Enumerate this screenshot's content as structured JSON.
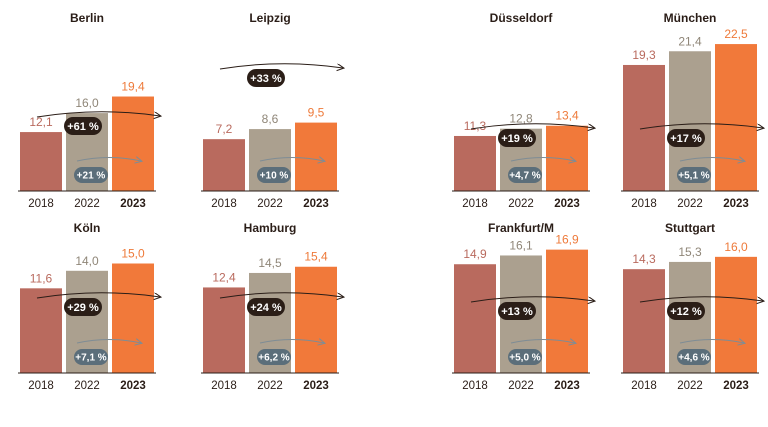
{
  "chart_data": [
    {
      "type": "bar",
      "title": "Berlin",
      "categories": [
        "2018",
        "2022",
        "2023"
      ],
      "values": [
        12.1,
        16.0,
        19.4
      ],
      "value_labels": [
        "12,1",
        "16,0",
        "19,4"
      ],
      "change_2018_2023": "+61 %",
      "change_2022_2023": "+21 %"
    },
    {
      "type": "bar",
      "title": "Leipzig",
      "categories": [
        "2018",
        "2022",
        "2023"
      ],
      "values": [
        7.2,
        8.6,
        9.5
      ],
      "value_labels": [
        "7,2",
        "8,6",
        "9,5"
      ],
      "change_2018_2023": "+33 %",
      "change_2022_2023": "+10 %"
    },
    {
      "type": "bar",
      "title": "Düsseldorf",
      "categories": [
        "2018",
        "2022",
        "2023"
      ],
      "values": [
        11.3,
        12.8,
        13.4
      ],
      "value_labels": [
        "11,3",
        "12,8",
        "13,4"
      ],
      "change_2018_2023": "+19 %",
      "change_2022_2023": "+4,7 %"
    },
    {
      "type": "bar",
      "title": "München",
      "categories": [
        "2018",
        "2022",
        "2023"
      ],
      "values": [
        19.3,
        21.4,
        22.5
      ],
      "value_labels": [
        "19,3",
        "21,4",
        "22,5"
      ],
      "change_2018_2023": "+17 %",
      "change_2022_2023": "+5,1 %"
    },
    {
      "type": "bar",
      "title": "Köln",
      "categories": [
        "2018",
        "2022",
        "2023"
      ],
      "values": [
        11.6,
        14.0,
        15.0
      ],
      "value_labels": [
        "11,6",
        "14,0",
        "15,0"
      ],
      "change_2018_2023": "+29 %",
      "change_2022_2023": "+7,1 %"
    },
    {
      "type": "bar",
      "title": "Hamburg",
      "categories": [
        "2018",
        "2022",
        "2023"
      ],
      "values": [
        12.4,
        14.5,
        15.4
      ],
      "value_labels": [
        "12,4",
        "14,5",
        "15,4"
      ],
      "change_2018_2023": "+24 %",
      "change_2022_2023": "+6,2 %"
    },
    {
      "type": "bar",
      "title": "Frankfurt/M",
      "categories": [
        "2018",
        "2022",
        "2023"
      ],
      "values": [
        14.9,
        16.1,
        16.9
      ],
      "value_labels": [
        "14,9",
        "16,1",
        "16,9"
      ],
      "change_2018_2023": "+13 %",
      "change_2022_2023": "+5,0 %"
    },
    {
      "type": "bar",
      "title": "Stuttgart",
      "categories": [
        "2018",
        "2022",
        "2023"
      ],
      "values": [
        14.3,
        15.3,
        16.0
      ],
      "value_labels": [
        "14,3",
        "15,3",
        "16,0"
      ],
      "change_2018_2023": "+12 %",
      "change_2022_2023": "+4,6 %"
    }
  ],
  "colors": {
    "bar_2018": "#b96a5e",
    "bar_2022": "#aba08f",
    "bar_2023": "#f1793a",
    "label_2018": "#b96a5e",
    "label_2022": "#8f8678",
    "label_2023": "#ee7a3a",
    "pill_dark": "#2b1e17",
    "pill_gray": "#5b6e7a",
    "axis": "#2a1d17"
  }
}
